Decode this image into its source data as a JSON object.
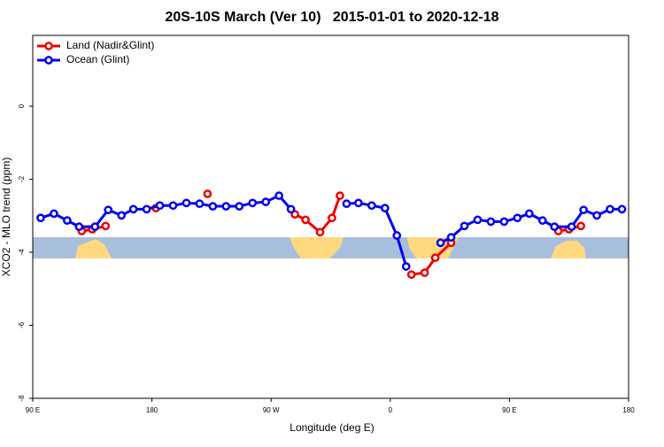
{
  "chart_data": {
    "type": "line",
    "title": "20S-10S March (Ver 10)   2015-01-01 to 2020-12-18",
    "x_label": "Longitude (deg E)",
    "y_label": "XCO2 - MLO trend (ppm)",
    "xlim": [
      90,
      540
    ],
    "ylim": [
      -8,
      1.94
    ],
    "xticks": [
      {
        "value": 90,
        "label": "90 E"
      },
      180,
      {
        "value": 270,
        "label": "90 W"
      },
      {
        "value": 360,
        "label": "0"
      },
      {
        "value": 450,
        "label": "90 E"
      },
      {
        "value": 540,
        "label": "180"
      }
    ],
    "yticks": [
      0,
      -2,
      -4,
      -6,
      -8
    ],
    "legend": "top-left",
    "series": [
      {
        "name": "Land (Nadir&Glint)",
        "color": "#ee0000",
        "x": [
          127,
          135,
          145,
          null,
          183,
          null,
          222,
          null,
          288,
          296,
          307,
          316,
          322,
          null,
          376,
          386,
          394,
          406,
          null,
          487,
          495,
          504
        ],
        "values": [
          -3.42,
          -3.37,
          -3.28,
          null,
          -2.79,
          null,
          -2.4,
          null,
          -2.96,
          -3.11,
          -3.45,
          -3.06,
          -2.45,
          null,
          -4.61,
          -4.56,
          -4.15,
          -3.74,
          null,
          -3.42,
          -3.37,
          -3.28
        ]
      },
      {
        "name": "Ocean (Glint)",
        "color": "#0000ee",
        "x": [
          96,
          106,
          116,
          125,
          137,
          147,
          157,
          166,
          176,
          186,
          196,
          206,
          216,
          226,
          236,
          246,
          256,
          266,
          276,
          285,
          null,
          327,
          336,
          346,
          356,
          365,
          372,
          null,
          398,
          406,
          416,
          426,
          436,
          446,
          456,
          465,
          475,
          484,
          497,
          506,
          516,
          526,
          535
        ],
        "values": [
          -3.06,
          -2.94,
          -3.13,
          -3.3,
          -3.3,
          -2.84,
          -2.99,
          -2.82,
          -2.82,
          -2.72,
          -2.72,
          -2.65,
          -2.67,
          -2.74,
          -2.74,
          -2.74,
          -2.65,
          -2.62,
          -2.45,
          -2.82,
          null,
          -2.67,
          -2.65,
          -2.72,
          -2.79,
          -3.54,
          -4.39,
          null,
          -3.74,
          -3.59,
          -3.28,
          -3.11,
          -3.16,
          -3.16,
          -3.06,
          -2.94,
          -3.13,
          -3.3,
          -3.3,
          -2.84,
          -2.99,
          -2.82,
          -2.82
        ]
      }
    ]
  }
}
